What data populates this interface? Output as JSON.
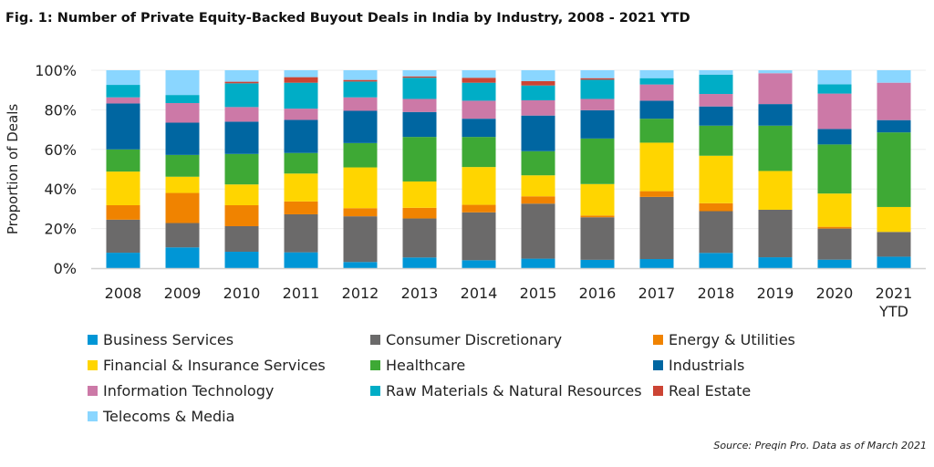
{
  "title": "Fig. 1: Number of Private Equity-Backed Buyout Deals in India by Industry, 2008 - 2021 YTD",
  "source": "Source: Preqin Pro. Data as of March 2021",
  "chart_data": {
    "type": "bar",
    "stacked": "percent",
    "title": "Fig. 1: Number of Private Equity-Backed Buyout Deals in India by Industry, 2008 - 2021 YTD",
    "xlabel": "",
    "ylabel": "Proportion of Deals",
    "ylim": [
      0,
      100
    ],
    "yticks": [
      "0%",
      "20%",
      "40%",
      "60%",
      "80%",
      "100%"
    ],
    "grid": true,
    "legend": "bottom",
    "categories": [
      [
        "2008"
      ],
      [
        "2009"
      ],
      [
        "2010"
      ],
      [
        "2011"
      ],
      [
        "2012"
      ],
      [
        "2013"
      ],
      [
        "2014"
      ],
      [
        "2015"
      ],
      [
        "2016"
      ],
      [
        "2017"
      ],
      [
        "2018"
      ],
      [
        "2019"
      ],
      [
        "2020"
      ],
      [
        "2021",
        "YTD"
      ]
    ],
    "series": [
      {
        "name": "Business Services",
        "color": "#0096d6",
        "values": [
          7.8,
          10.5,
          8.3,
          8.0,
          3.1,
          5.4,
          4.0,
          4.8,
          4.2,
          4.6,
          7.7,
          5.5,
          4.3,
          5.8
        ]
      },
      {
        "name": "Consumer Discretionary",
        "color": "#6b6a6a",
        "values": [
          16.7,
          12.3,
          12.9,
          19.2,
          23.1,
          19.7,
          24.2,
          27.8,
          21.5,
          31.4,
          21.1,
          24.0,
          15.7,
          12.5
        ]
      },
      {
        "name": "Energy & Utilities",
        "color": "#f08300",
        "values": [
          7.3,
          15.2,
          10.6,
          6.5,
          4.1,
          5.4,
          3.8,
          3.7,
          0.9,
          2.9,
          4.0,
          0,
          0.9,
          0
        ]
      },
      {
        "name": "Financial & Insurance Services",
        "color": "#ffd500",
        "values": [
          17.0,
          8.2,
          10.5,
          14.1,
          20.6,
          13.3,
          19.1,
          10.6,
          15.9,
          24.5,
          24.0,
          19.6,
          16.8,
          12.6
        ]
      },
      {
        "name": "Healthcare",
        "color": "#3ea935",
        "values": [
          11.2,
          11.0,
          15.4,
          10.4,
          12.3,
          22.5,
          15.2,
          12.2,
          23.0,
          12.1,
          15.2,
          22.9,
          24.8,
          37.7
        ]
      },
      {
        "name": "Industrials",
        "color": "#0066a1",
        "values": [
          23.2,
          16.3,
          16.3,
          16.7,
          16.3,
          12.6,
          9.2,
          18.0,
          14.3,
          9.1,
          9.7,
          10.9,
          7.8,
          6.2
        ]
      },
      {
        "name": "Information Technology",
        "color": "#cc79a7",
        "values": [
          3.1,
          9.9,
          7.4,
          5.7,
          6.8,
          6.6,
          9.1,
          7.7,
          5.7,
          8.2,
          6.3,
          15.6,
          17.9,
          18.9
        ]
      },
      {
        "name": "Raw Materials & Natural Resources",
        "color": "#00adc6",
        "values": [
          6.3,
          4.1,
          12.0,
          13.1,
          8.0,
          10.7,
          9.1,
          7.5,
          9.7,
          3.2,
          9.8,
          0,
          4.7,
          0
        ]
      },
      {
        "name": "Real Estate",
        "color": "#cc4434",
        "values": [
          0,
          0,
          0.8,
          2.8,
          0.8,
          0.7,
          2.5,
          2.2,
          0.8,
          0,
          0,
          0,
          0,
          0
        ]
      },
      {
        "name": "Telecoms & Media",
        "color": "#8ad6ff",
        "values": [
          7.4,
          12.5,
          5.8,
          3.5,
          4.9,
          3.1,
          3.8,
          5.5,
          4.0,
          4.0,
          2.2,
          1.5,
          7.1,
          6.3
        ]
      }
    ]
  }
}
